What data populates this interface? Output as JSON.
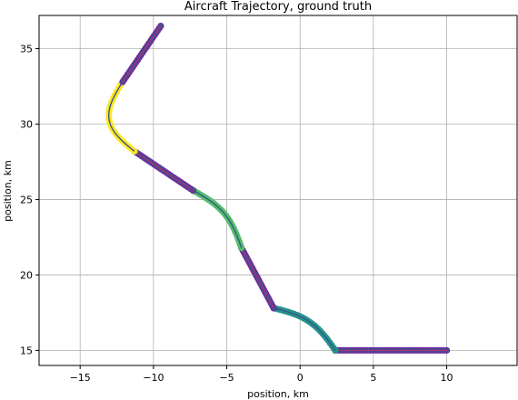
{
  "chart_data": {
    "type": "scatter",
    "title": "Aircraft Trajectory, ground truth",
    "xlabel": "position, km",
    "ylabel": "position, km",
    "xlim": [
      -17.8,
      14.8
    ],
    "ylim": [
      14.0,
      37.2
    ],
    "xticks": [
      -15,
      -10,
      -5,
      0,
      5,
      10
    ],
    "yticks": [
      15,
      20,
      25,
      30,
      35
    ],
    "xtick_labels": [
      "−15",
      "−10",
      "−5",
      "0",
      "5",
      "10"
    ],
    "ytick_labels": [
      "15",
      "20",
      "25",
      "30",
      "35"
    ],
    "grid": true,
    "colormap": "viridis",
    "marker_edge_color": "#7b1fa2",
    "segments": [
      {
        "from": [
          10.0,
          15.0
        ],
        "to": [
          2.4,
          15.0
        ],
        "turn_rate_level": 0.0
      },
      {
        "from": [
          2.4,
          15.0
        ],
        "to": [
          -1.8,
          17.8
        ],
        "turn_rate_level": 0.35
      },
      {
        "from": [
          -1.8,
          17.8
        ],
        "to": [
          -4.0,
          21.8
        ],
        "turn_rate_level": 0.0
      },
      {
        "from": [
          -4.0,
          21.8
        ],
        "to": [
          -7.3,
          25.6
        ],
        "turn_rate_level": 0.6
      },
      {
        "from": [
          -7.3,
          25.6
        ],
        "to": [
          -11.3,
          28.2
        ],
        "turn_rate_level": 0.0
      },
      {
        "from": [
          -11.3,
          28.2
        ],
        "to": [
          -12.1,
          32.8
        ],
        "turn_rate_level": 1.0
      },
      {
        "from": [
          -12.1,
          32.8
        ],
        "to": [
          -9.5,
          36.5
        ],
        "turn_rate_level": 0.0
      }
    ]
  }
}
